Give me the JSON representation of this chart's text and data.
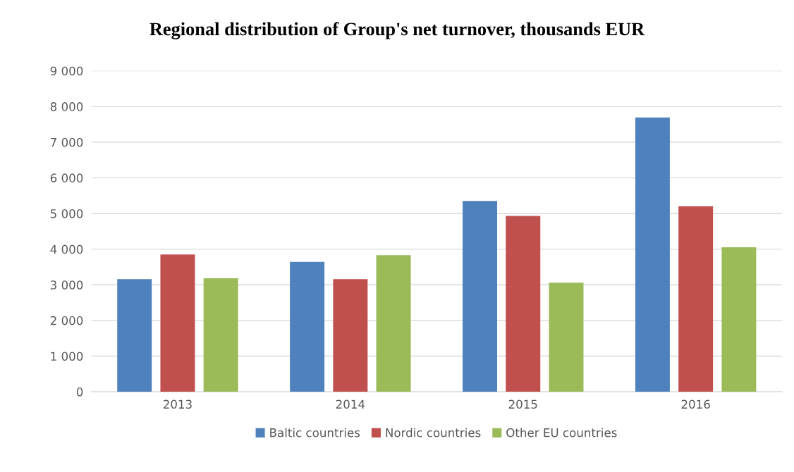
{
  "chart_data": {
    "type": "bar",
    "title": "Regional distribution of Group's net turnover, thousands EUR",
    "categories": [
      "2013",
      "2014",
      "2015",
      "2016"
    ],
    "series": [
      {
        "name": "Baltic countries",
        "color": "#4f81bd",
        "values": [
          3160,
          3640,
          5350,
          7690
        ]
      },
      {
        "name": "Nordic countries",
        "color": "#c0504d",
        "values": [
          3850,
          3160,
          4930,
          5200
        ]
      },
      {
        "name": "Other EU countries",
        "color": "#9bbb59",
        "values": [
          3180,
          3830,
          3060,
          4050
        ]
      }
    ],
    "ylim": [
      0,
      9000
    ],
    "yticks": [
      0,
      {
        "value": 1000,
        "label": "1 000"
      },
      {
        "value": 2000,
        "label": "2 000"
      },
      {
        "value": 3000,
        "label": "3 000"
      },
      {
        "value": 4000,
        "label": "4 000"
      },
      {
        "value": 5000,
        "label": "5 000"
      },
      {
        "value": 6000,
        "label": "6 000"
      },
      {
        "value": 7000,
        "label": "7 000"
      },
      {
        "value": 8000,
        "label": "8 000"
      },
      {
        "value": 9000,
        "label": "9 000"
      }
    ],
    "grid": "y",
    "legend": "bottom"
  }
}
